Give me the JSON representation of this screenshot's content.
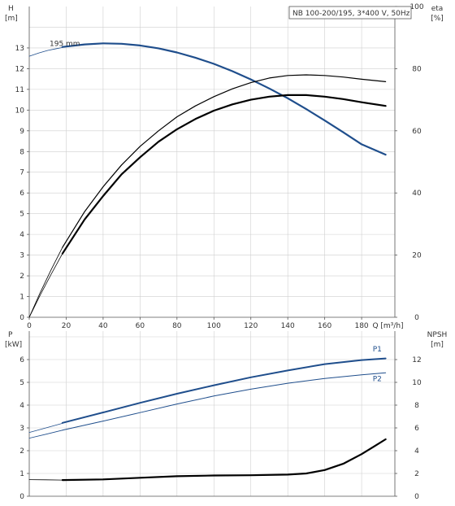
{
  "chart_data": [
    {
      "type": "line",
      "title": "NB 100-200/195, 3*400 V, 50Hz",
      "x_axis": {
        "label": "Q [m³/h]",
        "ticks": [
          "0",
          "20",
          "40",
          "60",
          "80",
          "100",
          "120",
          "140",
          "160",
          "180"
        ],
        "range": [
          0,
          198
        ]
      },
      "y_left": {
        "label_top": "H",
        "label_unit": "[m]",
        "ticks": [
          "0",
          "1",
          "2",
          "3",
          "4",
          "5",
          "6",
          "7",
          "8",
          "9",
          "10",
          "11",
          "12",
          "13"
        ],
        "range": [
          0,
          15
        ]
      },
      "y_right": {
        "label_top": "eta",
        "label_unit": "[%]",
        "ticks": [
          "0",
          "20",
          "40",
          "60",
          "80",
          "100"
        ],
        "range": [
          0,
          100
        ]
      },
      "grid": true,
      "series": [
        {
          "key": "head_ext",
          "name": "",
          "axis": "left",
          "color": "#1f4e8c",
          "width": 0.8,
          "x": [
            0,
            5,
            10,
            15,
            18
          ],
          "y": [
            12.6,
            12.75,
            12.88,
            12.97,
            13.02
          ]
        },
        {
          "key": "head",
          "name": "195 mm",
          "axis": "left",
          "color": "#1f4e8c",
          "width": 2.2,
          "x": [
            18,
            30,
            40,
            50,
            60,
            70,
            80,
            90,
            100,
            110,
            120,
            130,
            140,
            150,
            160,
            170,
            180,
            193
          ],
          "y": [
            13.05,
            13.17,
            13.22,
            13.2,
            13.12,
            12.98,
            12.78,
            12.53,
            12.23,
            11.88,
            11.48,
            11.04,
            10.57,
            10.05,
            9.5,
            8.93,
            8.35,
            7.85
          ]
        },
        {
          "key": "eta_ext_thin",
          "name": "",
          "axis": "right",
          "color": "#000000",
          "width": 0.8,
          "x": [
            0,
            6,
            12,
            18
          ],
          "y": [
            0,
            8,
            15.5,
            22.5
          ]
        },
        {
          "key": "eta_thin",
          "name": "",
          "axis": "right",
          "color": "#000000",
          "width": 1.2,
          "x": [
            18,
            30,
            40,
            50,
            60,
            70,
            80,
            90,
            100,
            110,
            120,
            130,
            140,
            150,
            160,
            170,
            180,
            193
          ],
          "y": [
            22.5,
            34,
            42,
            49,
            55,
            60,
            64.5,
            68,
            71,
            73.5,
            75.5,
            77,
            77.8,
            78,
            77.8,
            77.3,
            76.6,
            75.8
          ]
        },
        {
          "key": "eta_ext_thick",
          "name": "",
          "axis": "right",
          "color": "#000000",
          "width": 0.8,
          "x": [
            0,
            6,
            12,
            18
          ],
          "y": [
            0,
            7.2,
            14,
            20.5
          ]
        },
        {
          "key": "eta_thick",
          "name": "",
          "axis": "right",
          "color": "#000000",
          "width": 2.2,
          "x": [
            18,
            30,
            40,
            50,
            60,
            70,
            80,
            90,
            100,
            110,
            120,
            130,
            140,
            150,
            160,
            170,
            180,
            193
          ],
          "y": [
            20.5,
            31.5,
            39,
            46,
            51.5,
            56.5,
            60.5,
            63.8,
            66.5,
            68.5,
            70,
            71,
            71.5,
            71.5,
            71,
            70.2,
            69.2,
            68
          ]
        }
      ],
      "annotations": [
        {
          "text": "195 mm",
          "x": 11,
          "y": 13.1,
          "axis": "left"
        }
      ]
    },
    {
      "type": "line",
      "x_axis": {
        "label": "",
        "ticks": [],
        "range": [
          0,
          198
        ]
      },
      "y_left": {
        "label_top": "P",
        "label_unit": "[kW]",
        "ticks": [
          "0",
          "1",
          "2",
          "3",
          "4",
          "5",
          "6"
        ],
        "range": [
          0,
          7.25
        ]
      },
      "y_right": {
        "label_top": "NPSH",
        "label_unit": "[m]",
        "ticks": [
          "0",
          "2",
          "4",
          "6",
          "8",
          "10",
          "12"
        ],
        "range": [
          0,
          14.5
        ]
      },
      "grid": true,
      "series": [
        {
          "key": "p1_ext",
          "name": "",
          "axis": "left",
          "color": "#1f4e8c",
          "width": 0.8,
          "x": [
            0,
            9,
            18
          ],
          "y": [
            2.8,
            3.0,
            3.2
          ]
        },
        {
          "key": "p1",
          "name": "P1",
          "axis": "left",
          "color": "#1f4e8c",
          "width": 2.0,
          "x": [
            18,
            40,
            60,
            80,
            100,
            120,
            140,
            160,
            180,
            193
          ],
          "y": [
            3.22,
            3.68,
            4.1,
            4.5,
            4.87,
            5.22,
            5.52,
            5.8,
            5.98,
            6.05
          ]
        },
        {
          "key": "p2_ext",
          "name": "",
          "axis": "left",
          "color": "#1f4e8c",
          "width": 0.8,
          "x": [
            0,
            9,
            18
          ],
          "y": [
            2.55,
            2.72,
            2.9
          ]
        },
        {
          "key": "p2",
          "name": "P2",
          "axis": "left",
          "color": "#1f4e8c",
          "width": 1.0,
          "x": [
            18,
            40,
            60,
            80,
            100,
            120,
            140,
            160,
            180,
            193
          ],
          "y": [
            2.9,
            3.3,
            3.67,
            4.05,
            4.4,
            4.7,
            4.96,
            5.17,
            5.33,
            5.42
          ]
        },
        {
          "key": "npsh_ext",
          "name": "",
          "axis": "right",
          "color": "#000000",
          "width": 0.8,
          "x": [
            0,
            9,
            18
          ],
          "y": [
            1.46,
            1.44,
            1.42
          ]
        },
        {
          "key": "npsh",
          "name": "",
          "axis": "right",
          "color": "#000000",
          "width": 2.2,
          "x": [
            18,
            40,
            60,
            80,
            100,
            120,
            140,
            150,
            160,
            170,
            180,
            187,
            193
          ],
          "y": [
            1.42,
            1.48,
            1.62,
            1.76,
            1.82,
            1.84,
            1.9,
            2.0,
            2.3,
            2.85,
            3.7,
            4.4,
            5.0
          ]
        }
      ],
      "annotations": [
        {
          "text": "P1",
          "x": 186,
          "y": 6.35,
          "axis": "left",
          "color": "#1f4e8c"
        },
        {
          "text": "P2",
          "x": 186,
          "y": 5.05,
          "axis": "left",
          "color": "#1f4e8c"
        }
      ]
    }
  ]
}
